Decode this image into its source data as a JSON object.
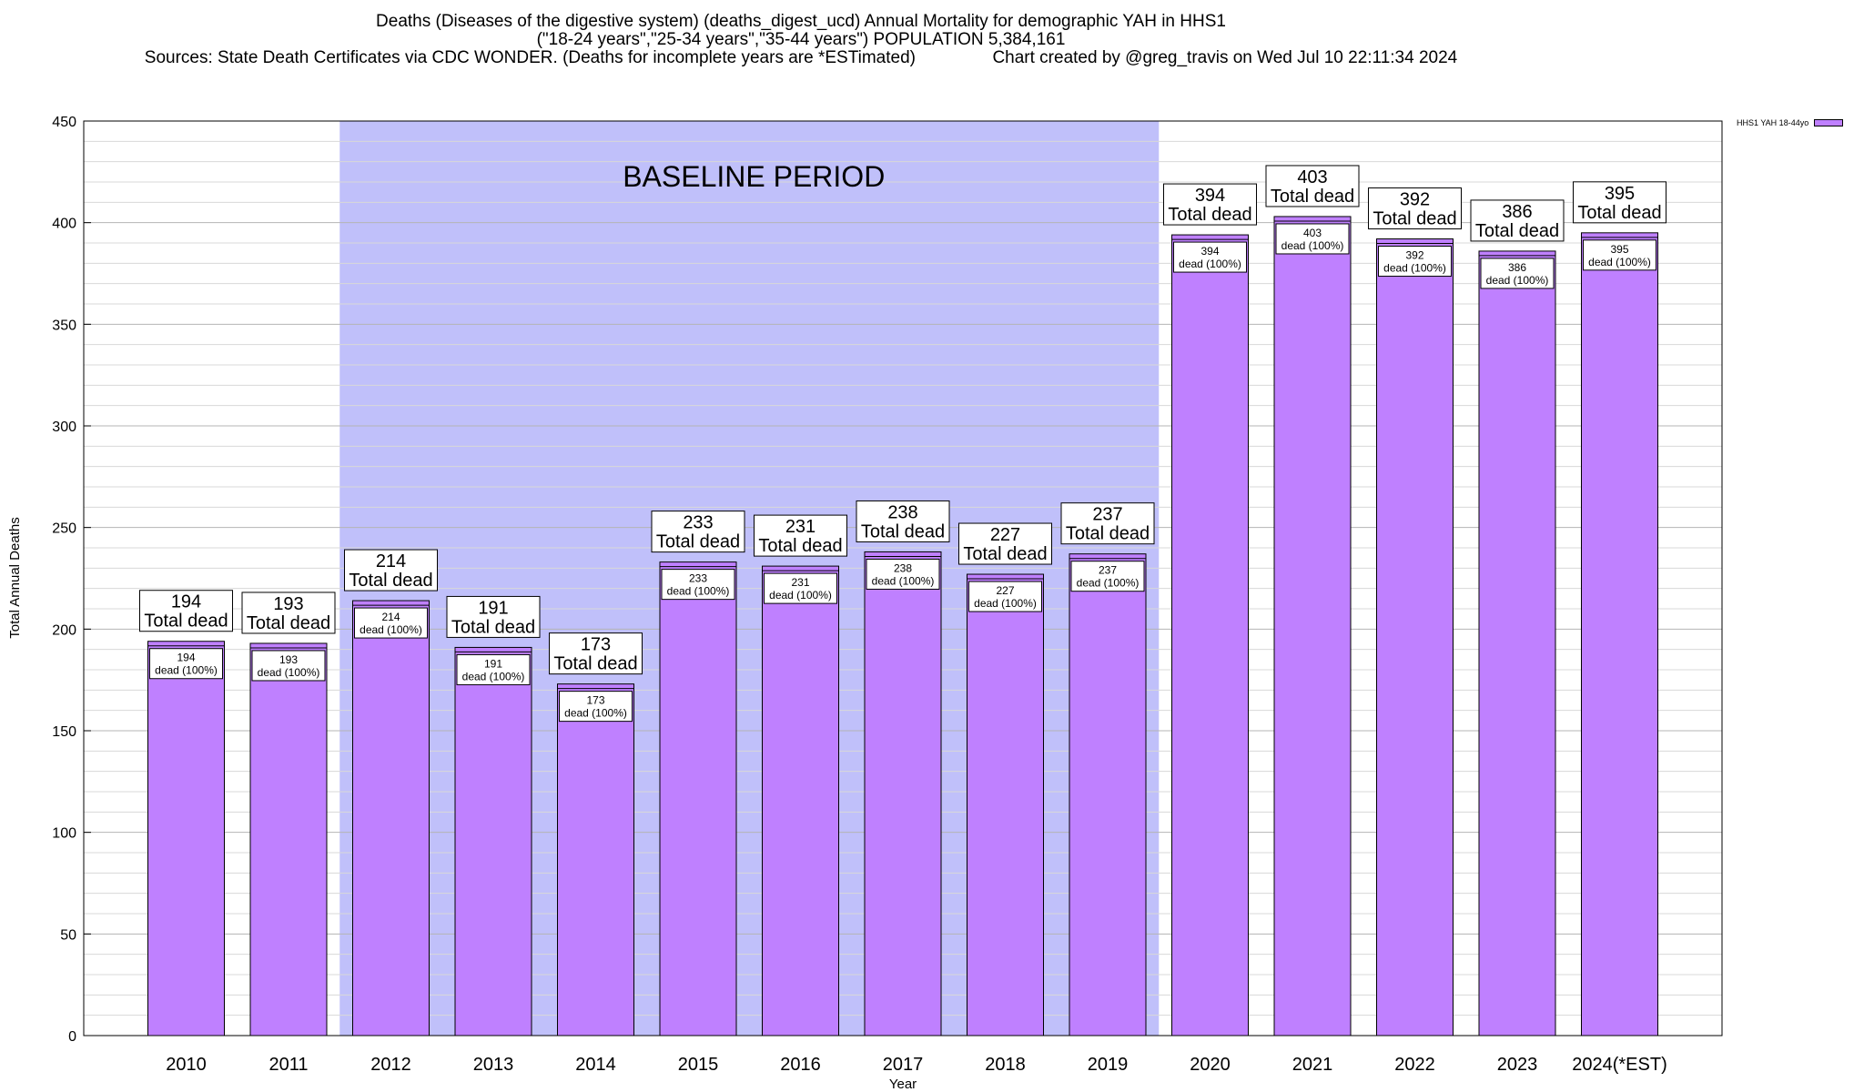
{
  "header": {
    "title_line1": "Deaths (Diseases of the digestive system) (deaths_digest_ucd) Annual Mortality for demographic YAH in HHS1",
    "title_line2": "(\"18-24 years\",\"25-34 years\",\"35-44 years\") POPULATION 5,384,161",
    "title_line3_left": "Sources: State Death Certificates via CDC WONDER. (Deaths for incomplete years are *ESTimated)",
    "title_line3_right": "Chart created by @greg_travis on Wed Jul 10 22:11:34 2024"
  },
  "legend": {
    "label": "HHS1 YAH 18-44yo"
  },
  "colors": {
    "bar": "#bf80ff",
    "baseline": "#c0c0fa",
    "grid": "#c8c8c8"
  },
  "chart_data": {
    "type": "bar",
    "xlabel": "Year",
    "ylabel": "Total Annual Deaths",
    "ylim": [
      0,
      450
    ],
    "yticks": [
      0,
      50,
      100,
      150,
      200,
      250,
      300,
      350,
      400,
      450
    ],
    "grid": true,
    "legend_placement": "top-right",
    "categories": [
      "2010",
      "2011",
      "2012",
      "2013",
      "2014",
      "2015",
      "2016",
      "2017",
      "2018",
      "2019",
      "2020",
      "2021",
      "2022",
      "2023",
      "2024(*EST)"
    ],
    "series": [
      {
        "name": "HHS1 YAH 18-44yo",
        "values": [
          194,
          193,
          214,
          191,
          173,
          233,
          231,
          238,
          227,
          237,
          394,
          403,
          392,
          386,
          395
        ]
      }
    ],
    "total_label_suffix": "Total dead",
    "inner_label_suffix": "dead (100%)",
    "baseline": {
      "label": "BASELINE PERIOD",
      "start": "2012",
      "end": "2019"
    }
  }
}
